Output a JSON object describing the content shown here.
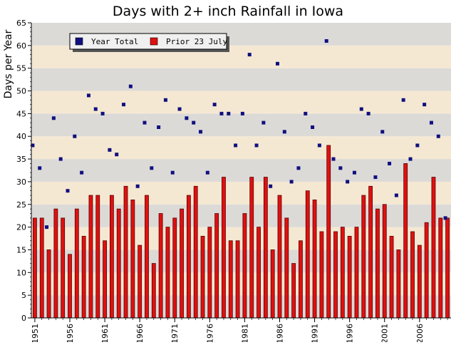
{
  "chart_data": {
    "type": "bar",
    "title": "Days with 2+ inch Rainfall in Iowa",
    "xlabel": "",
    "ylabel": "Days per Year",
    "ylim": [
      0,
      65
    ],
    "yticks": [
      0,
      5,
      10,
      15,
      20,
      25,
      30,
      35,
      40,
      45,
      50,
      55,
      60,
      65
    ],
    "xlim": [
      1951,
      2010
    ],
    "xticks": [
      1951,
      1956,
      1961,
      1966,
      1971,
      1976,
      1981,
      1986,
      1991,
      1996,
      2001,
      2006
    ],
    "legend_position": "top-left",
    "grid": "horizontal bands",
    "colors": {
      "bar": "#e01010",
      "bar_edge": "#5a0000",
      "point": "#101080",
      "band_light": "#f5e8d2",
      "band_dark": "#dcdad7"
    },
    "years": [
      1951,
      1952,
      1953,
      1954,
      1955,
      1956,
      1957,
      1958,
      1959,
      1960,
      1961,
      1962,
      1963,
      1964,
      1965,
      1966,
      1967,
      1968,
      1969,
      1970,
      1971,
      1972,
      1973,
      1974,
      1975,
      1976,
      1977,
      1978,
      1979,
      1980,
      1981,
      1982,
      1983,
      1984,
      1985,
      1986,
      1987,
      1988,
      1989,
      1990,
      1991,
      1992,
      1993,
      1994,
      1995,
      1996,
      1997,
      1998,
      1999,
      2000,
      2001,
      2002,
      2003,
      2004,
      2005,
      2006,
      2007,
      2008,
      2009,
      2010
    ],
    "series": [
      {
        "name": "Year Total",
        "kind": "scatter",
        "values": [
          38,
          33,
          20,
          44,
          35,
          28,
          40,
          32,
          49,
          46,
          45,
          37,
          36,
          47,
          51,
          29,
          43,
          33,
          42,
          48,
          32,
          46,
          44,
          43,
          41,
          32,
          47,
          45,
          45,
          38,
          45,
          58,
          38,
          43,
          29,
          56,
          41,
          30,
          33,
          45,
          42,
          38,
          61,
          35,
          33,
          30,
          32,
          46,
          45,
          31,
          41,
          34,
          27,
          48,
          35,
          38,
          47,
          43,
          40,
          22
        ]
      },
      {
        "name": "Prior 23 July",
        "kind": "bar",
        "values": [
          22,
          22,
          15,
          24,
          22,
          14,
          24,
          18,
          27,
          27,
          17,
          27,
          24,
          29,
          26,
          16,
          27,
          12,
          23,
          20,
          22,
          24,
          27,
          29,
          18,
          20,
          23,
          31,
          17,
          17,
          23,
          31,
          20,
          31,
          15,
          27,
          22,
          12,
          17,
          28,
          26,
          19,
          38,
          19,
          20,
          18,
          20,
          27,
          29,
          24,
          25,
          18,
          15,
          34,
          19,
          16,
          21,
          31,
          22,
          22
        ]
      }
    ]
  }
}
